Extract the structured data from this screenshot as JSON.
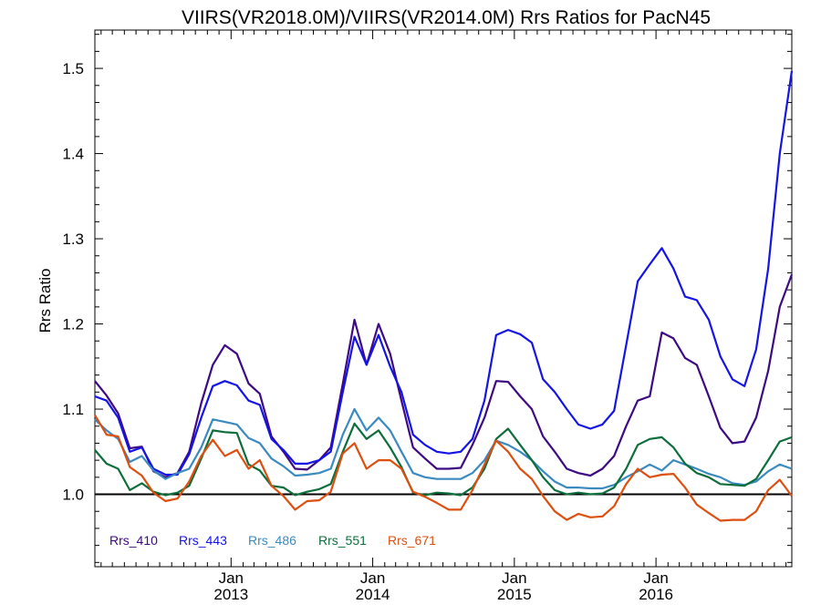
{
  "chart_data": {
    "type": "line",
    "title": "VIIRS(VR2018.0M)/VIIRS(VR2014.0M)  Rrs Ratios for PacN45",
    "ylabel": "Rrs Ratio",
    "xlabel": "",
    "ylim": [
      0.915,
      1.545
    ],
    "yticks": [
      1.0,
      1.1,
      1.2,
      1.3,
      1.4,
      1.5
    ],
    "ytick_labels": [
      "1.0",
      "1.1",
      "1.2",
      "1.3",
      "1.4",
      "1.5"
    ],
    "x_range": [
      "2012-01-16",
      "2016-12-16"
    ],
    "x_major_ticks": [
      {
        "date": "2013-01-01",
        "month": "Jan",
        "year": "2013"
      },
      {
        "date": "2014-01-01",
        "month": "Jan",
        "year": "2014"
      },
      {
        "date": "2015-01-01",
        "month": "Jan",
        "year": "2015"
      },
      {
        "date": "2016-01-01",
        "month": "Jan",
        "year": "2016"
      }
    ],
    "reference_line": 1.0,
    "x": [
      "2012-01-16",
      "2012-02-15",
      "2012-03-16",
      "2012-04-15",
      "2012-05-16",
      "2012-06-15",
      "2012-07-16",
      "2012-08-16",
      "2012-09-15",
      "2012-10-16",
      "2012-11-15",
      "2012-12-16",
      "2013-01-16",
      "2013-02-15",
      "2013-03-16",
      "2013-04-15",
      "2013-05-16",
      "2013-06-15",
      "2013-07-16",
      "2013-08-16",
      "2013-09-15",
      "2013-10-16",
      "2013-11-15",
      "2013-12-16",
      "2014-01-16",
      "2014-02-15",
      "2014-03-16",
      "2014-04-15",
      "2014-05-16",
      "2014-06-15",
      "2014-07-16",
      "2014-08-16",
      "2014-09-15",
      "2014-10-16",
      "2014-11-15",
      "2014-12-16",
      "2015-01-16",
      "2015-02-15",
      "2015-03-16",
      "2015-04-15",
      "2015-05-16",
      "2015-06-15",
      "2015-07-16",
      "2015-08-16",
      "2015-09-15",
      "2015-10-16",
      "2015-11-15",
      "2015-12-16",
      "2016-01-16",
      "2016-02-15",
      "2016-03-16",
      "2016-04-15",
      "2016-05-16",
      "2016-06-15",
      "2016-07-16",
      "2016-08-16",
      "2016-09-15",
      "2016-10-16",
      "2016-11-15",
      "2016-12-16"
    ],
    "series": [
      {
        "name": "Rrs_410",
        "color": "#3d0a82",
        "values": [
          1.133,
          1.116,
          1.095,
          1.054,
          1.056,
          1.027,
          1.02,
          1.025,
          1.05,
          1.107,
          1.152,
          1.175,
          1.165,
          1.13,
          1.118,
          1.068,
          1.05,
          1.03,
          1.029,
          1.04,
          1.055,
          1.13,
          1.205,
          1.152,
          1.2,
          1.165,
          1.11,
          1.055,
          1.042,
          1.03,
          1.03,
          1.031,
          1.058,
          1.09,
          1.133,
          1.132,
          1.115,
          1.1,
          1.068,
          1.05,
          1.03,
          1.025,
          1.022,
          1.03,
          1.045,
          1.08,
          1.11,
          1.115,
          1.19,
          1.183,
          1.16,
          1.152,
          1.115,
          1.078,
          1.06,
          1.062,
          1.09,
          1.145,
          1.22,
          1.258
        ]
      },
      {
        "name": "Rrs_443",
        "color": "#1414e6",
        "values": [
          1.115,
          1.11,
          1.09,
          1.05,
          1.055,
          1.03,
          1.023,
          1.023,
          1.047,
          1.09,
          1.127,
          1.133,
          1.128,
          1.11,
          1.105,
          1.065,
          1.052,
          1.036,
          1.036,
          1.04,
          1.05,
          1.12,
          1.185,
          1.152,
          1.187,
          1.15,
          1.12,
          1.07,
          1.058,
          1.05,
          1.048,
          1.05,
          1.065,
          1.11,
          1.187,
          1.193,
          1.188,
          1.178,
          1.135,
          1.12,
          1.1,
          1.082,
          1.077,
          1.082,
          1.098,
          1.175,
          1.25,
          1.27,
          1.289,
          1.265,
          1.232,
          1.228,
          1.205,
          1.162,
          1.135,
          1.127,
          1.17,
          1.265,
          1.4,
          1.497
        ]
      },
      {
        "name": "Rrs_486",
        "color": "#3a8ac0",
        "values": [
          1.088,
          1.075,
          1.065,
          1.038,
          1.045,
          1.028,
          1.018,
          1.025,
          1.03,
          1.055,
          1.088,
          1.085,
          1.082,
          1.066,
          1.06,
          1.042,
          1.033,
          1.022,
          1.023,
          1.025,
          1.03,
          1.07,
          1.1,
          1.075,
          1.09,
          1.075,
          1.05,
          1.025,
          1.02,
          1.018,
          1.018,
          1.018,
          1.025,
          1.04,
          1.063,
          1.058,
          1.05,
          1.04,
          1.027,
          1.015,
          1.008,
          1.008,
          1.007,
          1.007,
          1.011,
          1.02,
          1.027,
          1.035,
          1.028,
          1.04,
          1.035,
          1.03,
          1.024,
          1.02,
          1.013,
          1.011,
          1.015,
          1.027,
          1.035,
          1.03
        ]
      },
      {
        "name": "Rrs_551",
        "color": "#0d6e3c",
        "values": [
          1.052,
          1.036,
          1.03,
          1.005,
          1.013,
          1.003,
          0.999,
          1.002,
          1.01,
          1.042,
          1.075,
          1.073,
          1.072,
          1.035,
          1.028,
          1.01,
          1.008,
          0.999,
          1.003,
          1.006,
          1.012,
          1.05,
          1.083,
          1.065,
          1.075,
          1.055,
          1.032,
          1.002,
          0.999,
          1.002,
          1.001,
          0.999,
          1.008,
          1.03,
          1.065,
          1.077,
          1.058,
          1.04,
          1.02,
          1.005,
          1.0,
          1.002,
          1.0,
          1.001,
          1.008,
          1.03,
          1.058,
          1.065,
          1.067,
          1.055,
          1.036,
          1.025,
          1.02,
          1.012,
          1.011,
          1.01,
          1.018,
          1.04,
          1.062,
          1.067
        ]
      },
      {
        "name": "Rrs_671",
        "color": "#dd4f0f",
        "values": [
          1.093,
          1.07,
          1.068,
          1.032,
          1.022,
          1.002,
          0.992,
          0.995,
          1.015,
          1.045,
          1.064,
          1.045,
          1.052,
          1.03,
          1.04,
          1.01,
          0.998,
          0.982,
          0.992,
          0.993,
          1.003,
          1.048,
          1.06,
          1.03,
          1.04,
          1.04,
          1.03,
          1.003,
          0.997,
          0.99,
          0.982,
          0.982,
          1.005,
          1.035,
          1.063,
          1.05,
          1.03,
          1.018,
          0.998,
          0.98,
          0.97,
          0.977,
          0.973,
          0.974,
          0.986,
          1.012,
          1.03,
          1.02,
          1.023,
          1.024,
          1.008,
          0.988,
          0.978,
          0.969,
          0.97,
          0.97,
          0.98,
          1.005,
          1.017,
          0.998
        ]
      }
    ]
  }
}
